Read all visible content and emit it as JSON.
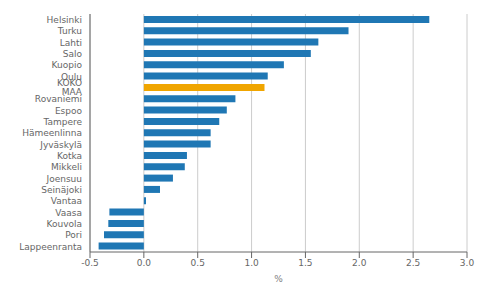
{
  "chart_data": {
    "type": "bar",
    "orientation": "horizontal",
    "categories": [
      "Helsinki",
      "Turku",
      "Lahti",
      "Salo",
      "Kuopio",
      "Oulu",
      "KOKO MAA",
      "Rovaniemi",
      "Espoo",
      "Tampere",
      "Hämeenlinna",
      "Jyväskylä",
      "Kotka",
      "Mikkeli",
      "Joensuu",
      "Seinäjoki",
      "Vantaa",
      "Vaasa",
      "Kouvola",
      "Pori",
      "Lappeenranta"
    ],
    "values": [
      2.65,
      1.9,
      1.62,
      1.55,
      1.3,
      1.15,
      1.12,
      0.85,
      0.77,
      0.7,
      0.62,
      0.62,
      0.4,
      0.38,
      0.27,
      0.15,
      0.02,
      -0.32,
      -0.33,
      -0.37,
      -0.42
    ],
    "colors": [
      "#1f77b4",
      "#1f77b4",
      "#1f77b4",
      "#1f77b4",
      "#1f77b4",
      "#1f77b4",
      "#f0a500",
      "#1f77b4",
      "#1f77b4",
      "#1f77b4",
      "#1f77b4",
      "#1f77b4",
      "#1f77b4",
      "#1f77b4",
      "#1f77b4",
      "#1f77b4",
      "#1f77b4",
      "#1f77b4",
      "#1f77b4",
      "#1f77b4",
      "#1f77b4"
    ],
    "xlabel": "%",
    "xlim": [
      -0.5,
      3.0
    ],
    "xticks": [
      -0.5,
      {
        "value": 0,
        "label": "0.0"
      },
      0.5,
      {
        "value": 1,
        "label": "1.0"
      },
      1.5,
      {
        "value": 2,
        "label": "2.0"
      },
      2.5,
      {
        "value": 3,
        "label": "3.0"
      }
    ],
    "grid": true
  }
}
